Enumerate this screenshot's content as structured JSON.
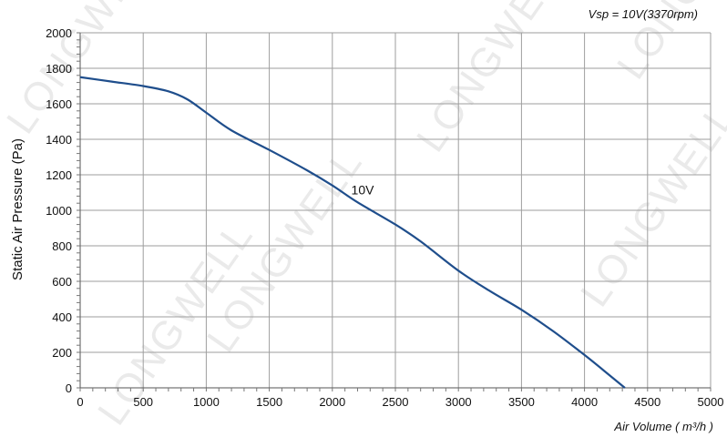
{
  "chart_data": {
    "type": "line",
    "title": "",
    "annotation": "Vsp = 10V(3370rpm)",
    "xlabel": "Air Volume ( m³/h )",
    "ylabel": "Static Air Pressure  (Pa)",
    "xlim": [
      0,
      5000
    ],
    "ylim": [
      0,
      2000
    ],
    "x_ticks": [
      0,
      500,
      1000,
      1500,
      2000,
      2500,
      3000,
      3500,
      4000,
      4500,
      5000
    ],
    "y_ticks": [
      0,
      200,
      400,
      600,
      800,
      1000,
      1200,
      1400,
      1600,
      1800,
      2000
    ],
    "grid": {
      "vertical": true,
      "horizontal": true
    },
    "series": [
      {
        "name": "10V",
        "color": "#1f4e8c",
        "x": [
          0,
          250,
          500,
          700,
          850,
          1000,
          1200,
          1500,
          1800,
          2000,
          2200,
          2500,
          2700,
          3000,
          3250,
          3500,
          3750,
          4000,
          4200,
          4320
        ],
        "y": [
          1750,
          1725,
          1700,
          1670,
          1625,
          1550,
          1450,
          1340,
          1225,
          1140,
          1045,
          920,
          825,
          660,
          545,
          440,
          320,
          185,
          70,
          0
        ]
      }
    ],
    "series_label_position": {
      "x": 2150,
      "y": 1090
    }
  },
  "watermark": {
    "text": "LONGWELL"
  }
}
